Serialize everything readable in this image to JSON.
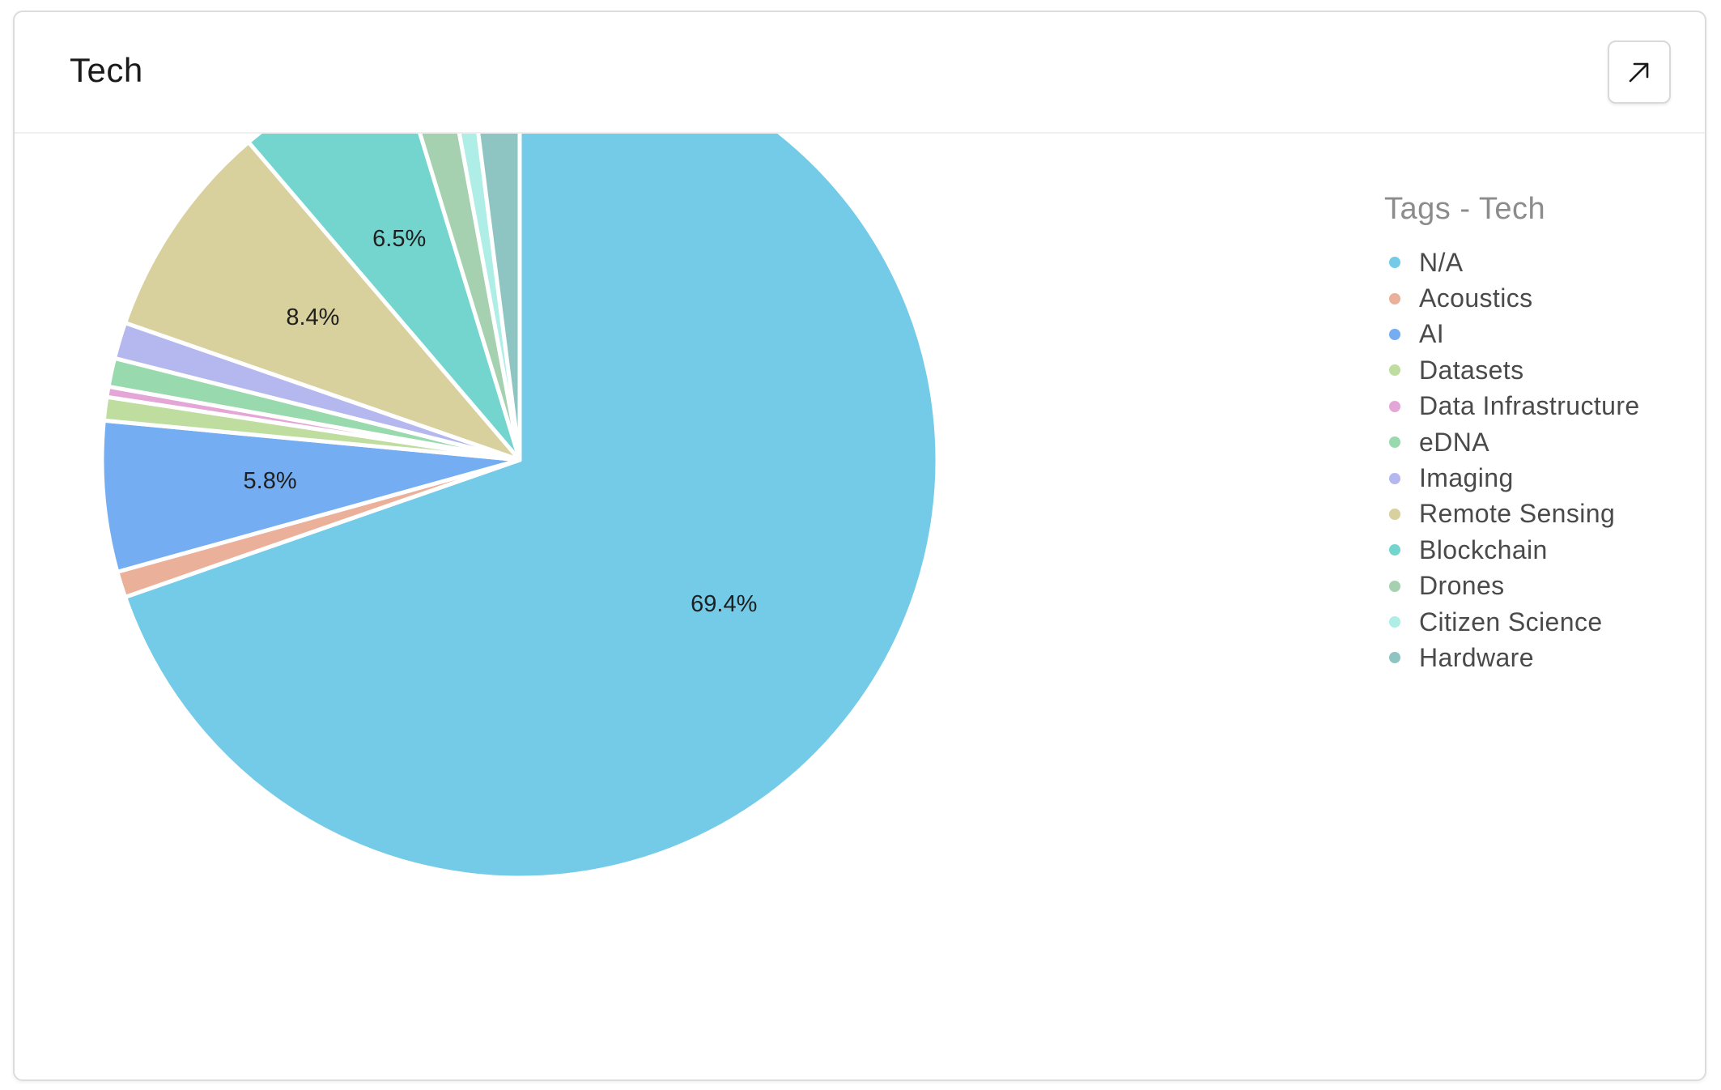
{
  "card": {
    "title": "Tech",
    "expand_icon": "arrow-up-right-icon"
  },
  "chart_data": {
    "type": "pie",
    "legend_title": "Tags - Tech",
    "legend_position": "right",
    "start_angle": "12 o'clock",
    "direction": "clockwise",
    "slices": [
      {
        "name": "N/A",
        "value": 69.4,
        "label": "69.4%",
        "color": "#73cbe8"
      },
      {
        "name": "Acoustics",
        "value": 1.0,
        "label": "",
        "color": "#eab099"
      },
      {
        "name": "AI",
        "value": 5.8,
        "label": "5.8%",
        "color": "#74adf2"
      },
      {
        "name": "Datasets",
        "value": 0.9,
        "label": "",
        "color": "#bfdd9e"
      },
      {
        "name": "Data Infrastructure",
        "value": 0.4,
        "label": "",
        "color": "#e4a6d6"
      },
      {
        "name": "eDNA",
        "value": 1.1,
        "label": "",
        "color": "#98d9ad"
      },
      {
        "name": "Imaging",
        "value": 1.4,
        "label": "",
        "color": "#b4b8ee"
      },
      {
        "name": "Remote Sensing",
        "value": 8.4,
        "label": "8.4%",
        "color": "#d8d09d"
      },
      {
        "name": "Blockchain",
        "value": 6.5,
        "label": "6.5%",
        "color": "#74d5cf"
      },
      {
        "name": "Drones",
        "value": 1.8,
        "label": "",
        "color": "#a6d1b0"
      },
      {
        "name": "Citizen Science",
        "value": 0.9,
        "label": "",
        "color": "#aeeee6"
      },
      {
        "name": "Hardware",
        "value": 2.0,
        "label": "",
        "color": "#8ec5c2"
      }
    ]
  }
}
